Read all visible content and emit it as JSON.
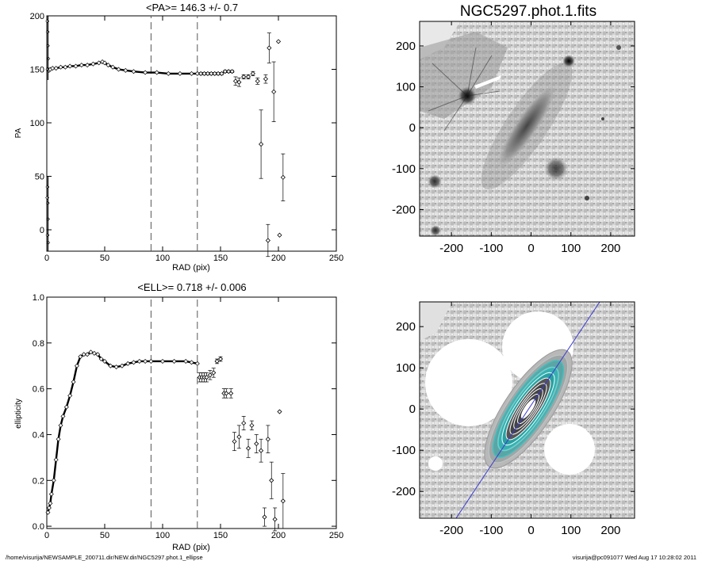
{
  "footer": {
    "path": "/home/visurija/NEWSAMPLE_200711.dir/NEW.dir/NGC5297.phot.1_ellipse",
    "user_time": "visurija@pc091077  Wed Aug 17 10:28:02 2011"
  },
  "chart_data": [
    {
      "id": "pa",
      "type": "scatter",
      "title": "<PA>= 146.3 +/-   0.7",
      "xlabel": "RAD (pix)",
      "ylabel": "PA",
      "xlim": [
        0,
        250
      ],
      "ylim": [
        -20,
        200
      ],
      "xticks": [
        0,
        50,
        100,
        150,
        200,
        250
      ],
      "yticks": [
        0,
        50,
        100,
        150,
        200
      ],
      "vlines": [
        90,
        130
      ],
      "series": [
        {
          "style": "line",
          "x": [
            1,
            2,
            3,
            5,
            8,
            12,
            16,
            20,
            25,
            30,
            35,
            40,
            45,
            48,
            50,
            53,
            57,
            62,
            68,
            75,
            85,
            95,
            105,
            115,
            125,
            130
          ],
          "y": [
            150,
            149,
            150,
            151,
            151,
            152,
            152,
            153,
            153,
            154,
            154,
            155,
            156,
            157,
            156,
            154,
            152,
            150,
            149,
            148,
            147,
            147,
            146,
            146,
            146,
            146
          ]
        },
        {
          "style": "points",
          "x": [
            133,
            136,
            139,
            142,
            145,
            148,
            151,
            154,
            157,
            160,
            163,
            166,
            170,
            174,
            178,
            182,
            185,
            189,
            192,
            196,
            200,
            204,
            201
          ],
          "y": [
            146,
            146,
            146,
            146,
            146,
            146,
            146,
            148,
            148,
            148,
            139,
            138,
            143,
            143,
            146,
            139,
            80,
            141,
            170,
            129,
            176,
            49,
            -5
          ],
          "err": [
            1,
            1,
            1,
            1,
            1,
            1,
            1,
            1,
            1,
            1,
            4,
            4,
            2,
            2,
            2,
            3,
            32,
            4,
            14,
            28,
            0,
            22,
            0
          ]
        },
        {
          "style": "points",
          "x": [
            191
          ],
          "y": [
            -10
          ],
          "err": [
            15
          ]
        }
      ]
    },
    {
      "id": "ell",
      "type": "scatter",
      "title": "<ELL>= 0.718 +/-  0.006",
      "xlabel": "RAD (pix)",
      "ylabel": "ellipticity",
      "xlim": [
        0,
        250
      ],
      "ylim": [
        -0.01,
        1.0
      ],
      "xticks": [
        0,
        50,
        100,
        150,
        200,
        250
      ],
      "yticks": [
        0.0,
        0.2,
        0.4,
        0.6,
        0.8,
        1.0
      ],
      "vlines": [
        90,
        130
      ],
      "series": [
        {
          "style": "line",
          "x": [
            1,
            2,
            3,
            4,
            6,
            8,
            10,
            12,
            14,
            17,
            20,
            23,
            26,
            29,
            32,
            35,
            38,
            41,
            44,
            47,
            50,
            55,
            60,
            65,
            70,
            75,
            80,
            85,
            90,
            100,
            110,
            120,
            125,
            130
          ],
          "y": [
            0.06,
            0.08,
            0.1,
            0.14,
            0.2,
            0.29,
            0.38,
            0.44,
            0.48,
            0.52,
            0.57,
            0.63,
            0.7,
            0.74,
            0.75,
            0.75,
            0.76,
            0.755,
            0.75,
            0.73,
            0.72,
            0.7,
            0.695,
            0.7,
            0.71,
            0.715,
            0.72,
            0.72,
            0.72,
            0.72,
            0.72,
            0.72,
            0.715,
            0.71
          ]
        },
        {
          "style": "points",
          "x": [
            132,
            134,
            136,
            138,
            141,
            144,
            147,
            150,
            153,
            155,
            159,
            162,
            166,
            170,
            174,
            177,
            181,
            185,
            188,
            191,
            194,
            197,
            201,
            204
          ],
          "y": [
            0.65,
            0.65,
            0.65,
            0.65,
            0.66,
            0.67,
            0.72,
            0.73,
            0.58,
            0.58,
            0.58,
            0.37,
            0.39,
            0.45,
            0.34,
            0.44,
            0.36,
            0.33,
            0.04,
            0.38,
            0.2,
            0.03,
            0.5,
            0.11
          ],
          "err": [
            0.02,
            0.02,
            0.02,
            0.02,
            0.02,
            0.02,
            0.01,
            0.01,
            0.02,
            0.02,
            0.02,
            0.04,
            0.05,
            0.03,
            0.04,
            0.02,
            0.04,
            0.05,
            0.04,
            0.06,
            0.08,
            0.05,
            0.0,
            0.12
          ]
        }
      ]
    },
    {
      "id": "img",
      "type": "heatmap",
      "title": "NGC5297.phot.1.fits",
      "xlim": [
        -280,
        260
      ],
      "ylim": [
        -265,
        260
      ],
      "xticks": [
        -200,
        -100,
        0,
        100,
        200
      ],
      "yticks": [
        -200,
        -100,
        0,
        100,
        200
      ]
    },
    {
      "id": "mask",
      "type": "heatmap",
      "title": "",
      "xlim": [
        -280,
        260
      ],
      "ylim": [
        -265,
        260
      ],
      "xticks": [
        -200,
        -100,
        0,
        100,
        200
      ],
      "yticks": [
        -200,
        -100,
        0,
        100,
        200
      ],
      "pa_line_deg": 56
    }
  ]
}
